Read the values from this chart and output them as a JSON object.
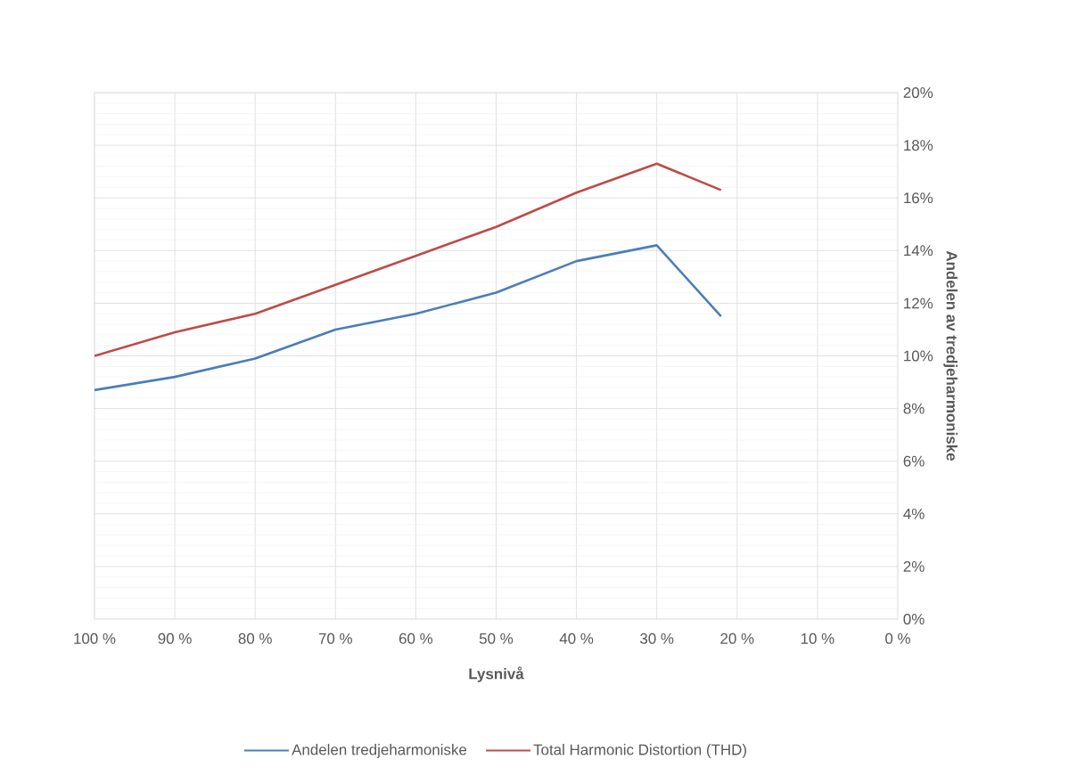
{
  "chart_data": {
    "type": "line",
    "xlabel": "Lysnivå",
    "ylabel": "Andelen av tredjeharmoniske",
    "x": [
      100,
      90,
      80,
      70,
      60,
      50,
      40,
      30,
      22
    ],
    "series": [
      {
        "name": "Andelen tredjeharmoniske",
        "color": "#4a7ebb",
        "values": [
          8.7,
          9.2,
          9.9,
          11.0,
          11.6,
          12.4,
          13.6,
          14.2,
          11.5
        ]
      },
      {
        "name": "Total Harmonic Distortion (THD)",
        "color": "#be4b48",
        "values": [
          10.0,
          10.9,
          11.6,
          12.7,
          13.8,
          14.9,
          16.2,
          17.3,
          16.3
        ]
      }
    ],
    "xlim": [
      100,
      0
    ],
    "xticks": [
      {
        "value": 100,
        "label": "100 %"
      },
      {
        "value": 90,
        "label": "90 %"
      },
      {
        "value": 80,
        "label": "80 %"
      },
      {
        "value": 70,
        "label": "70 %"
      },
      {
        "value": 60,
        "label": "60 %"
      },
      {
        "value": 50,
        "label": "50 %"
      },
      {
        "value": 40,
        "label": "40 %"
      },
      {
        "value": 30,
        "label": "30 %"
      },
      {
        "value": 20,
        "label": "20 %"
      },
      {
        "value": 10,
        "label": "10 %"
      },
      {
        "value": 0,
        "label": "0 %"
      }
    ],
    "ylim": [
      0,
      20
    ],
    "yticks": [
      {
        "value": 0,
        "label": "0%"
      },
      {
        "value": 2,
        "label": "2%"
      },
      {
        "value": 4,
        "label": "4%"
      },
      {
        "value": 6,
        "label": "6%"
      },
      {
        "value": 8,
        "label": "8%"
      },
      {
        "value": 10,
        "label": "10%"
      },
      {
        "value": 12,
        "label": "12%"
      },
      {
        "value": 14,
        "label": "14%"
      },
      {
        "value": 16,
        "label": "16%"
      },
      {
        "value": 18,
        "label": "18%"
      },
      {
        "value": 20,
        "label": "20%"
      }
    ],
    "grid": true,
    "legend": "bottom",
    "line_style": "solid"
  }
}
